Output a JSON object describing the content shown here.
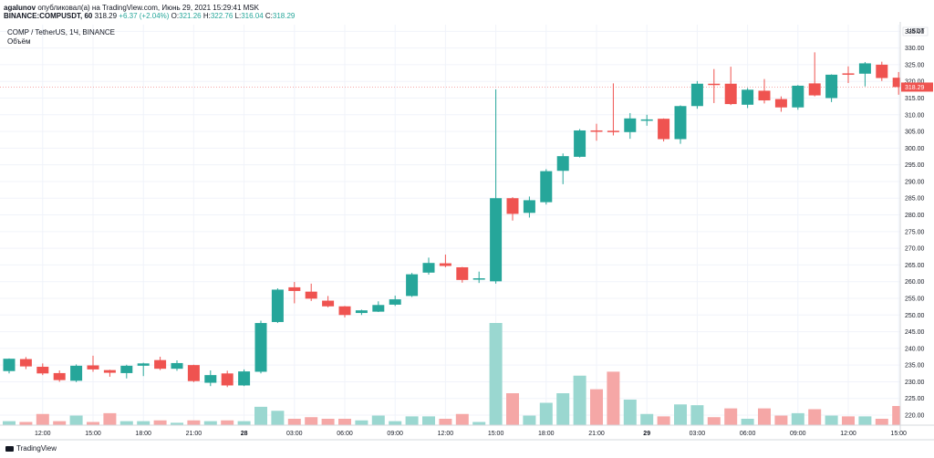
{
  "header": {
    "author": "agalunov",
    "published": "опубликовал(а) на TradingView.com, Июнь 29, 2021 15:29:41 MSK",
    "ticker": "BINANCE:COMPUSDT, 60",
    "price": "318.29",
    "change": "+6.37 (+2.04%)",
    "o_label": "O:",
    "o": "321.26",
    "h_label": "H:",
    "h": "322.76",
    "l_label": "L:",
    "l": "316.04",
    "c_label": "C:",
    "c": "318.29"
  },
  "legend": {
    "symbol": "COMP / TetherUS, 1Ч, BINANCE",
    "volume": "Объём"
  },
  "footer": {
    "brand": "TradingView"
  },
  "colors": {
    "up": "#26a69a",
    "down": "#ef5350",
    "vol_up": "#9ad7d0",
    "vol_down": "#f5a7a6"
  },
  "chart_data": {
    "type": "candlestick",
    "title": "COMP / TetherUS, 1Ч, BINANCE",
    "currency": "USDT",
    "last_price": "318.29",
    "ylim": [
      217,
      337
    ],
    "y_ticks": [
      "335.00",
      "330.00",
      "325.00",
      "320.00",
      "315.00",
      "310.00",
      "305.00",
      "300.00",
      "295.00",
      "290.00",
      "285.00",
      "280.00",
      "275.00",
      "270.00",
      "265.00",
      "260.00",
      "255.00",
      "250.00",
      "245.00",
      "240.00",
      "235.00",
      "230.00",
      "225.00",
      "220.00"
    ],
    "x_ticks": [
      {
        "label": "12:00",
        "i": 2
      },
      {
        "label": "15:00",
        "i": 5
      },
      {
        "label": "18:00",
        "i": 8
      },
      {
        "label": "21:00",
        "i": 11
      },
      {
        "label": "28",
        "i": 14,
        "bold": true
      },
      {
        "label": "03:00",
        "i": 17
      },
      {
        "label": "06:00",
        "i": 20
      },
      {
        "label": "09:00",
        "i": 23
      },
      {
        "label": "12:00",
        "i": 26
      },
      {
        "label": "15:00",
        "i": 29
      },
      {
        "label": "18:00",
        "i": 32
      },
      {
        "label": "21:00",
        "i": 35
      },
      {
        "label": "29",
        "i": 38,
        "bold": true
      },
      {
        "label": "03:00",
        "i": 41
      },
      {
        "label": "06:00",
        "i": 44
      },
      {
        "label": "09:00",
        "i": 47
      },
      {
        "label": "12:00",
        "i": 50
      },
      {
        "label": "15:00",
        "i": 53
      }
    ],
    "candles": [
      {
        "o": 233.2,
        "h": 237.0,
        "l": 232.5,
        "c": 236.9,
        "v": 5
      },
      {
        "o": 236.8,
        "h": 237.4,
        "l": 233.8,
        "c": 234.6,
        "v": 4
      },
      {
        "o": 234.5,
        "h": 235.5,
        "l": 232.0,
        "c": 232.5,
        "v": 14
      },
      {
        "o": 232.6,
        "h": 233.4,
        "l": 230.0,
        "c": 230.5,
        "v": 5
      },
      {
        "o": 230.3,
        "h": 235.2,
        "l": 229.9,
        "c": 234.8,
        "v": 12
      },
      {
        "o": 234.9,
        "h": 237.8,
        "l": 233.0,
        "c": 233.7,
        "v": 4
      },
      {
        "o": 233.5,
        "h": 233.6,
        "l": 231.5,
        "c": 232.7,
        "v": 15
      },
      {
        "o": 232.6,
        "h": 235.1,
        "l": 231.0,
        "c": 234.8,
        "v": 5
      },
      {
        "o": 234.8,
        "h": 235.7,
        "l": 231.7,
        "c": 235.5,
        "v": 5
      },
      {
        "o": 236.5,
        "h": 237.5,
        "l": 233.5,
        "c": 233.9,
        "v": 6
      },
      {
        "o": 233.9,
        "h": 236.4,
        "l": 233.3,
        "c": 235.6,
        "v": 3
      },
      {
        "o": 235.0,
        "h": 235.1,
        "l": 229.9,
        "c": 230.2,
        "v": 6
      },
      {
        "o": 229.7,
        "h": 233.4,
        "l": 228.7,
        "c": 232.0,
        "v": 5
      },
      {
        "o": 232.5,
        "h": 233.3,
        "l": 228.4,
        "c": 228.9,
        "v": 6
      },
      {
        "o": 228.9,
        "h": 233.7,
        "l": 228.7,
        "c": 233.1,
        "v": 5
      },
      {
        "o": 233.0,
        "h": 248.3,
        "l": 232.5,
        "c": 247.6,
        "v": 23
      },
      {
        "o": 247.9,
        "h": 258.0,
        "l": 247.6,
        "c": 257.6,
        "v": 18
      },
      {
        "o": 258.3,
        "h": 259.9,
        "l": 253.5,
        "c": 257.2,
        "v": 8
      },
      {
        "o": 257.0,
        "h": 259.4,
        "l": 254.2,
        "c": 254.9,
        "v": 10
      },
      {
        "o": 254.3,
        "h": 255.7,
        "l": 252.3,
        "c": 252.6,
        "v": 8
      },
      {
        "o": 252.6,
        "h": 252.7,
        "l": 249.3,
        "c": 250.0,
        "v": 8
      },
      {
        "o": 250.6,
        "h": 251.6,
        "l": 250.0,
        "c": 251.4,
        "v": 6
      },
      {
        "o": 251.0,
        "h": 254.1,
        "l": 250.9,
        "c": 253.0,
        "v": 12
      },
      {
        "o": 253.1,
        "h": 255.8,
        "l": 252.7,
        "c": 254.7,
        "v": 5
      },
      {
        "o": 255.7,
        "h": 262.6,
        "l": 255.4,
        "c": 262.2,
        "v": 11
      },
      {
        "o": 262.7,
        "h": 267.2,
        "l": 262.1,
        "c": 265.6,
        "v": 11
      },
      {
        "o": 265.5,
        "h": 268.1,
        "l": 264.3,
        "c": 264.7,
        "v": 8
      },
      {
        "o": 264.3,
        "h": 264.4,
        "l": 259.7,
        "c": 260.5,
        "v": 14
      },
      {
        "o": 260.6,
        "h": 263.0,
        "l": 259.6,
        "c": 261.0,
        "v": 4
      },
      {
        "o": 260.1,
        "h": 317.6,
        "l": 259.4,
        "c": 285.0,
        "v": 128
      },
      {
        "o": 285.0,
        "h": 285.3,
        "l": 278.3,
        "c": 280.3,
        "v": 40
      },
      {
        "o": 280.6,
        "h": 285.5,
        "l": 279.2,
        "c": 284.4,
        "v": 12
      },
      {
        "o": 283.8,
        "h": 293.7,
        "l": 283.1,
        "c": 293.1,
        "v": 28
      },
      {
        "o": 293.2,
        "h": 298.4,
        "l": 289.2,
        "c": 297.6,
        "v": 40
      },
      {
        "o": 297.4,
        "h": 305.7,
        "l": 297.2,
        "c": 305.3,
        "v": 62
      },
      {
        "o": 305.3,
        "h": 307.3,
        "l": 302.2,
        "c": 305.0,
        "v": 45
      },
      {
        "o": 305.2,
        "h": 319.4,
        "l": 303.8,
        "c": 304.9,
        "v": 67
      },
      {
        "o": 304.8,
        "h": 310.5,
        "l": 302.8,
        "c": 308.9,
        "v": 32
      },
      {
        "o": 308.3,
        "h": 310.0,
        "l": 306.7,
        "c": 308.6,
        "v": 14
      },
      {
        "o": 308.8,
        "h": 308.9,
        "l": 302.0,
        "c": 302.7,
        "v": 11
      },
      {
        "o": 302.7,
        "h": 312.8,
        "l": 301.3,
        "c": 312.6,
        "v": 26
      },
      {
        "o": 312.6,
        "h": 320.1,
        "l": 311.8,
        "c": 319.3,
        "v": 25
      },
      {
        "o": 319.3,
        "h": 323.7,
        "l": 313.5,
        "c": 319.2,
        "v": 10
      },
      {
        "o": 319.3,
        "h": 324.4,
        "l": 312.9,
        "c": 313.2,
        "v": 21
      },
      {
        "o": 313.0,
        "h": 318.0,
        "l": 312.0,
        "c": 317.5,
        "v": 8
      },
      {
        "o": 317.2,
        "h": 320.7,
        "l": 313.4,
        "c": 314.3,
        "v": 21
      },
      {
        "o": 314.7,
        "h": 315.5,
        "l": 310.9,
        "c": 312.2,
        "v": 12
      },
      {
        "o": 312.2,
        "h": 318.9,
        "l": 311.5,
        "c": 318.7,
        "v": 15
      },
      {
        "o": 319.4,
        "h": 328.7,
        "l": 315.5,
        "c": 315.8,
        "v": 20
      },
      {
        "o": 315.0,
        "h": 322.1,
        "l": 313.8,
        "c": 322.0,
        "v": 12
      },
      {
        "o": 322.4,
        "h": 324.5,
        "l": 319.5,
        "c": 322.2,
        "v": 11
      },
      {
        "o": 322.3,
        "h": 325.8,
        "l": 318.5,
        "c": 325.4,
        "v": 11
      },
      {
        "o": 325.0,
        "h": 325.9,
        "l": 320.1,
        "c": 321.0,
        "v": 8
      },
      {
        "o": 321.1,
        "h": 322.8,
        "l": 316.0,
        "c": 318.3,
        "v": 24
      }
    ]
  }
}
